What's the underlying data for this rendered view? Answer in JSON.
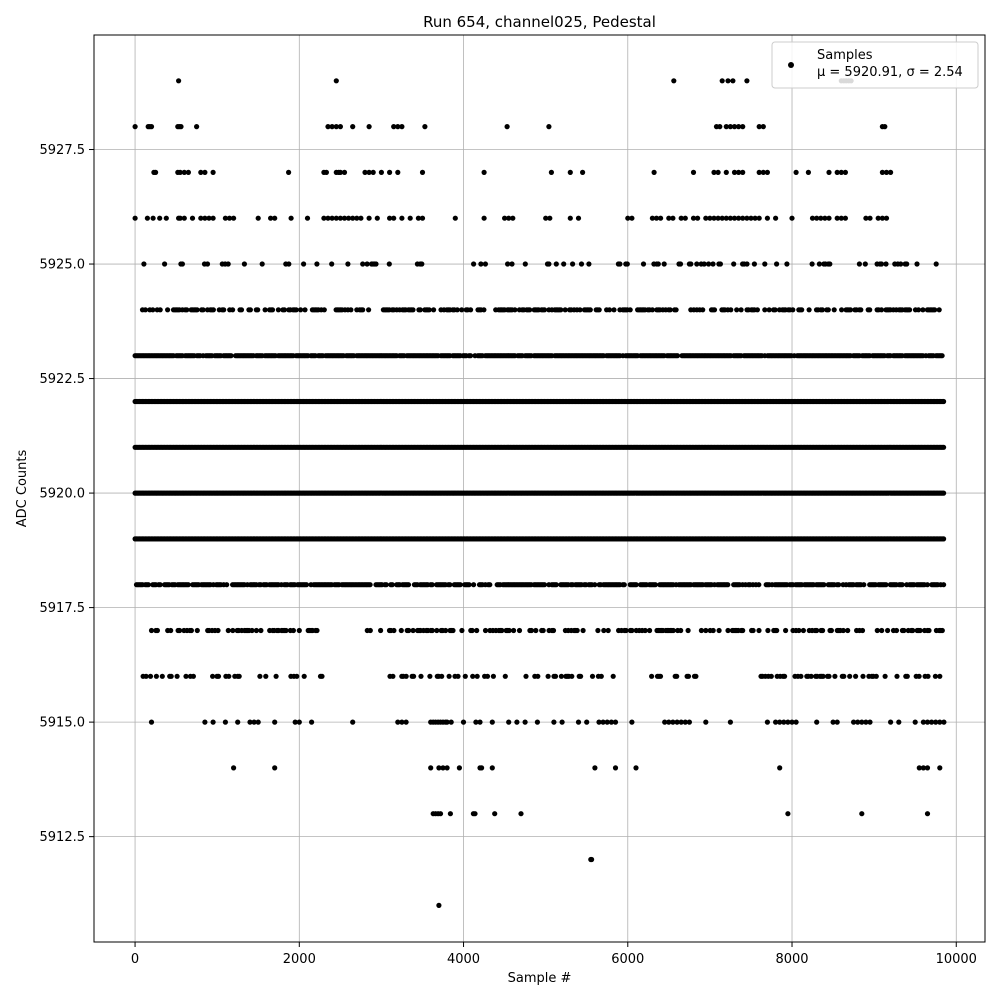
{
  "chart_data": {
    "type": "scatter",
    "title": "Run 654, channel025, Pedestal",
    "xlabel": "Sample #",
    "ylabel": "ADC Counts",
    "xlim": [
      -500,
      10350
    ],
    "ylim": [
      5910.2,
      5930.0
    ],
    "xticks": [
      0,
      2000,
      4000,
      6000,
      8000,
      10000
    ],
    "xtick_labels": [
      "0",
      "2000",
      "4000",
      "6000",
      "8000",
      "10000"
    ],
    "yticks": [
      5912.5,
      5915.0,
      5917.5,
      5920.0,
      5922.5,
      5925.0,
      5927.5
    ],
    "ytick_labels": [
      "5912.5",
      "5915.0",
      "5917.5",
      "5920.0",
      "5922.5",
      "5925.0",
      "5927.5"
    ],
    "grid": true,
    "legend": {
      "placement": "top-right",
      "entries": [
        "Samples",
        "μ = 5920.91, σ = 2.54"
      ]
    },
    "marker_color": "#000000",
    "sample_count": 9850,
    "stats": {
      "mean": 5920.91,
      "std": 2.54
    },
    "series": [
      {
        "name": "Samples",
        "levels": [
          {
            "y": 5929,
            "x": [
              530,
              2450,
              6560,
              7150,
              7220,
              7280,
              7450,
              8600,
              8630,
              8660,
              8690,
              8720
            ]
          },
          {
            "y": 5928,
            "x": [
              0,
              160,
              180,
              200,
              520,
              540,
              560,
              750,
              2350,
              2400,
              2450,
              2500,
              2650,
              2850,
              3150,
              3200,
              3250,
              3530,
              4530,
              5040,
              7080,
              7120,
              7200,
              7250,
              7300,
              7350,
              7400,
              7600,
              7650,
              9100,
              9130
            ]
          },
          {
            "y": 5927,
            "x": [
              230,
              250,
              520,
              550,
              600,
              650,
              800,
              850,
              950,
              1870,
              2300,
              2330,
              2450,
              2480,
              2500,
              2550,
              2800,
              2850,
              2900,
              3000,
              3100,
              3200,
              3500,
              4250,
              5070,
              5300,
              5450,
              6320,
              6800,
              7050,
              7100,
              7200,
              7300,
              7350,
              7400,
              7600,
              7650,
              7700,
              8050,
              8200,
              8450,
              8550,
              8600,
              8650,
              9100,
              9150,
              9200
            ]
          },
          {
            "y": 5926,
            "x": [
              0,
              150,
              220,
              300,
              380,
              530,
              550,
              600,
              700,
              800,
              850,
              900,
              950,
              1100,
              1150,
              1200,
              1500,
              1650,
              1700,
              1900,
              2100,
              2300,
              2350,
              2400,
              2450,
              2500,
              2550,
              2600,
              2650,
              2700,
              2750,
              2850,
              2950,
              3100,
              3150,
              3250,
              3350,
              3450,
              3500,
              3900,
              4250,
              4500,
              4550,
              4600,
              5000,
              5050,
              5300,
              5400,
              6000,
              6050,
              6300,
              6350,
              6400,
              6500,
              6550,
              6650,
              6700,
              6800,
              6850,
              6950,
              7000,
              7050,
              7100,
              7150,
              7200,
              7250,
              7300,
              7350,
              7400,
              7450,
              7500,
              7550,
              7600,
              7700,
              7800,
              8000,
              8250,
              8300,
              8350,
              8400,
              8450,
              8550,
              8600,
              8650,
              8900,
              8950,
              9050,
              9100,
              9150
            ]
          },
          {
            "y": 5915,
            "x": [
              200,
              850,
              950,
              1100,
              1250,
              1400,
              1450,
              1500,
              1700,
              1950,
              2000,
              2150,
              2650,
              3200,
              3250,
              3300,
              3600,
              3630,
              3660,
              3690,
              3720,
              3750,
              3780,
              3800,
              3850,
              4000,
              4150,
              4200,
              4350,
              4550,
              4650,
              4750,
              4900,
              5100,
              5200,
              5400,
              5500,
              5650,
              5700,
              5750,
              5800,
              5850,
              6050,
              6450,
              6500,
              6550,
              6600,
              6650,
              6700,
              6750,
              6950,
              7250,
              7700,
              7800,
              7850,
              7900,
              7950,
              8000,
              8050,
              8300,
              8500,
              8550,
              8750,
              8800,
              8850,
              8900,
              8950,
              9200,
              9300,
              9500,
              9600,
              9650,
              9700,
              9750,
              9800,
              9850
            ]
          },
          {
            "y": 5914,
            "x": [
              1200,
              1700,
              3600,
              3700,
              3750,
              3800,
              3950,
              4200,
              4220,
              4350,
              5600,
              5850,
              6100,
              7850,
              9550,
              9600,
              9650,
              9800
            ]
          },
          {
            "y": 5913,
            "x": [
              3630,
              3660,
              3690,
              3720,
              3840,
              4120,
              4140,
              4380,
              4700,
              7950,
              8850,
              9650
            ]
          },
          {
            "y": 5912,
            "x": [
              5550,
              5560
            ]
          },
          {
            "y": 5911,
            "x": [
              3700
            ]
          }
        ],
        "dense_levels": [
          {
            "y": 5925,
            "x_start": 0,
            "x_end": 9850,
            "density": 0.18,
            "gaps": [
              [
                3600,
                3900
              ]
            ]
          },
          {
            "y": 5924,
            "x_start": 0,
            "x_end": 9850,
            "density": 0.5,
            "gaps": []
          },
          {
            "y": 5923,
            "x_start": 0,
            "x_end": 9850,
            "density": 0.9,
            "gaps": []
          },
          {
            "y": 5922,
            "x_start": 0,
            "x_end": 9850,
            "density": 1.0,
            "gaps": []
          },
          {
            "y": 5921,
            "x_start": 0,
            "x_end": 9850,
            "density": 1.0,
            "gaps": []
          },
          {
            "y": 5920,
            "x_start": 0,
            "x_end": 9850,
            "density": 1.0,
            "gaps": []
          },
          {
            "y": 5919,
            "x_start": 0,
            "x_end": 9850,
            "density": 1.0,
            "gaps": []
          },
          {
            "y": 5918,
            "x_start": 0,
            "x_end": 9850,
            "density": 0.75,
            "gaps": []
          },
          {
            "y": 5917,
            "x_start": 200,
            "x_end": 9850,
            "density": 0.4,
            "gaps": [
              [
                2300,
                2800
              ]
            ]
          },
          {
            "y": 5916,
            "x_start": 80,
            "x_end": 9850,
            "density": 0.25,
            "gaps": [
              [
                2300,
                2950
              ],
              [
                6850,
                7500
              ]
            ]
          }
        ]
      }
    ]
  }
}
